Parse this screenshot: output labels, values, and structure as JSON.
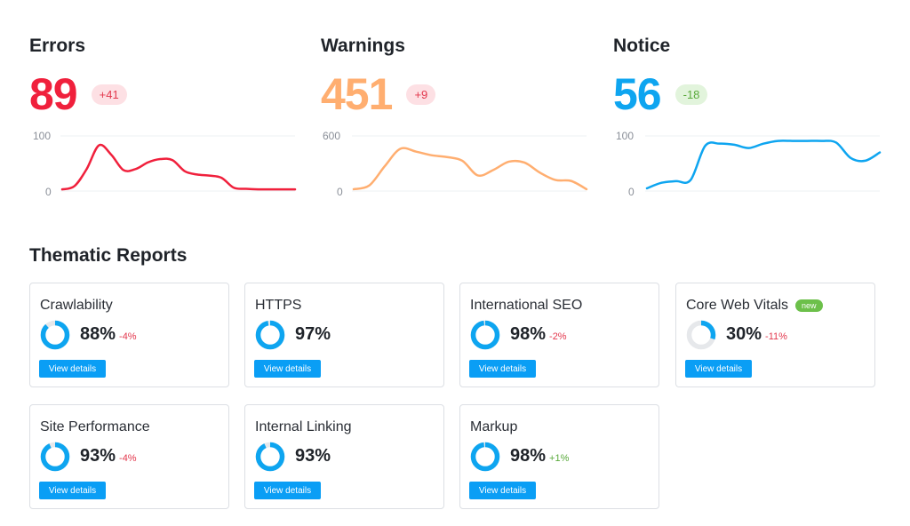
{
  "metrics": [
    {
      "title": "Errors",
      "value": "89",
      "delta": "+41",
      "color": "#f0203c",
      "delta_bg": "#fde0e4",
      "delta_color": "#e3384d",
      "axis_top": "100",
      "axis_bottom": "0",
      "ymax": 100,
      "series": [
        3,
        9,
        40,
        83,
        66,
        38,
        40,
        52,
        58,
        56,
        36,
        30,
        28,
        24,
        6,
        4,
        3,
        3,
        3,
        3
      ]
    },
    {
      "title": "Warnings",
      "value": "451",
      "delta": "+9",
      "color": "#ffae70",
      "delta_bg": "#fde0e4",
      "delta_color": "#e3384d",
      "axis_top": "600",
      "axis_bottom": "0",
      "ymax": 600,
      "series": [
        20,
        60,
        270,
        460,
        430,
        390,
        370,
        330,
        170,
        230,
        320,
        310,
        200,
        120,
        110,
        20
      ]
    },
    {
      "title": "Notice",
      "value": "56",
      "delta": "-18",
      "color": "#0ea5f0",
      "delta_bg": "#e2f4dc",
      "delta_color": "#5aaa3c",
      "axis_top": "100",
      "axis_bottom": "0",
      "ymax": 100,
      "series": [
        5,
        15,
        18,
        20,
        82,
        86,
        84,
        78,
        86,
        91,
        91,
        91,
        91,
        88,
        60,
        55,
        70
      ]
    }
  ],
  "section_title": "Thematic Reports",
  "cards": [
    {
      "title": "Crawlability",
      "pct": "88%",
      "value": 88,
      "change": "-4%",
      "change_color": "#e3384d",
      "ring": "#0ea5f0",
      "button": "View details"
    },
    {
      "title": "HTTPS",
      "pct": "97%",
      "value": 97,
      "change": "",
      "change_color": "#e3384d",
      "ring": "#0ea5f0",
      "button": "View details"
    },
    {
      "title": "International SEO",
      "pct": "98%",
      "value": 98,
      "change": "-2%",
      "change_color": "#e3384d",
      "ring": "#0ea5f0",
      "button": "View details"
    },
    {
      "title": "Core Web Vitals",
      "badge": "new",
      "pct": "30%",
      "value": 30,
      "change": "-11%",
      "change_color": "#e3384d",
      "ring": "#0ea5f0",
      "button": "View details"
    },
    {
      "title": "Site Performance",
      "pct": "93%",
      "value": 93,
      "change": "-4%",
      "change_color": "#e3384d",
      "ring": "#0ea5f0",
      "button": "View details"
    },
    {
      "title": "Internal Linking",
      "pct": "93%",
      "value": 93,
      "change": "",
      "change_color": "#e3384d",
      "ring": "#0ea5f0",
      "button": "View details"
    },
    {
      "title": "Markup",
      "pct": "98%",
      "value": 98,
      "change": "+1%",
      "change_color": "#5aaa3c",
      "ring": "#0ea5f0",
      "button": "View details"
    }
  ]
}
